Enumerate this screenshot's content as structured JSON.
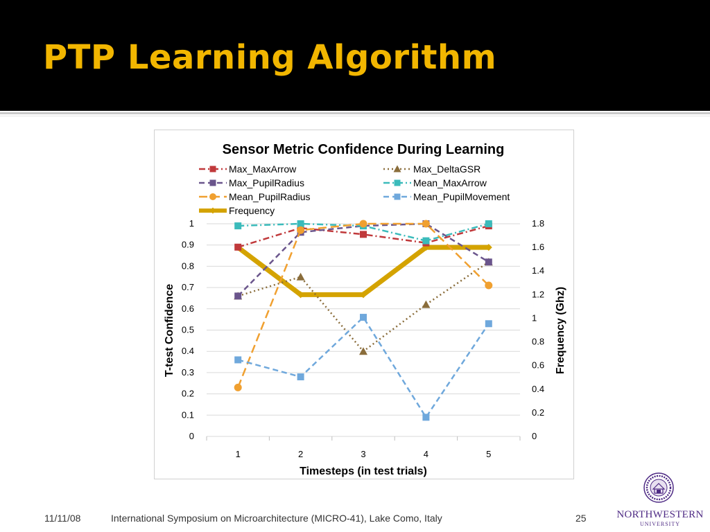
{
  "slide": {
    "title": "PTP Learning Algorithm",
    "footer_date": "11/11/08",
    "footer_text": "International Symposium on Microarchitecture (MICRO-41), Lake Como, Italy",
    "page_number": "25",
    "logo_name": "NORTHWESTERN",
    "logo_sub": "UNIVERSITY",
    "header_bg": "#000000",
    "title_color": "#f2b600",
    "logo_color": "#4e2a84"
  },
  "chart_data": {
    "type": "line",
    "title": "Sensor Metric Confidence During Learning",
    "xlabel": "Timesteps (in test trials)",
    "ylabel": "T-test Confidence",
    "y2label": "Frequency (Ghz)",
    "categories": [
      "1",
      "2",
      "3",
      "4",
      "5"
    ],
    "ylim": [
      0,
      1
    ],
    "y_ticks": [
      "0",
      "0.1",
      "0.2",
      "0.3",
      "0.4",
      "0.5",
      "0.6",
      "0.7",
      "0.8",
      "0.9",
      "1"
    ],
    "y2lim": [
      0,
      1.8
    ],
    "y2_ticks": [
      "0",
      "0.2",
      "0.4",
      "0.6",
      "0.8",
      "1",
      "1.2",
      "1.4",
      "1.6",
      "1.8"
    ],
    "grid": "horizontal",
    "legend": "top",
    "series": [
      {
        "name": "Max_MaxArrow",
        "values": [
          0.89,
          0.98,
          0.95,
          0.91,
          0.99
        ],
        "color": "#c0393b",
        "dash": "dashdot",
        "marker": "square",
        "axis": "left"
      },
      {
        "name": "Max_DeltaGSR",
        "values": [
          0.66,
          0.75,
          0.4,
          0.62,
          0.82
        ],
        "color": "#8a6d3b",
        "dash": "dot",
        "marker": "triangle",
        "axis": "left"
      },
      {
        "name": "Max_PupilRadius",
        "values": [
          0.66,
          0.96,
          0.99,
          1.0,
          0.82
        ],
        "color": "#6a558c",
        "dash": "dash",
        "marker": "square",
        "axis": "left"
      },
      {
        "name": "Mean_MaxArrow",
        "values": [
          0.99,
          1.0,
          0.99,
          0.92,
          1.0
        ],
        "color": "#3bbbbb",
        "dash": "dashdot",
        "marker": "square",
        "axis": "left"
      },
      {
        "name": "Mean_PupilRadius",
        "values": [
          0.23,
          0.97,
          1.0,
          1.0,
          0.71
        ],
        "color": "#f0a030",
        "dash": "longdash",
        "marker": "circle",
        "axis": "left"
      },
      {
        "name": "Mean_PupilMovement",
        "values": [
          0.36,
          0.28,
          0.56,
          0.09,
          0.53
        ],
        "color": "#6fa8dc",
        "dash": "dash",
        "marker": "square",
        "axis": "left"
      },
      {
        "name": "Frequency",
        "values": [
          1.6,
          1.2,
          1.2,
          1.6,
          1.6
        ],
        "color": "#d4a300",
        "dash": "solid",
        "marker": "diamond",
        "axis": "right"
      }
    ]
  }
}
